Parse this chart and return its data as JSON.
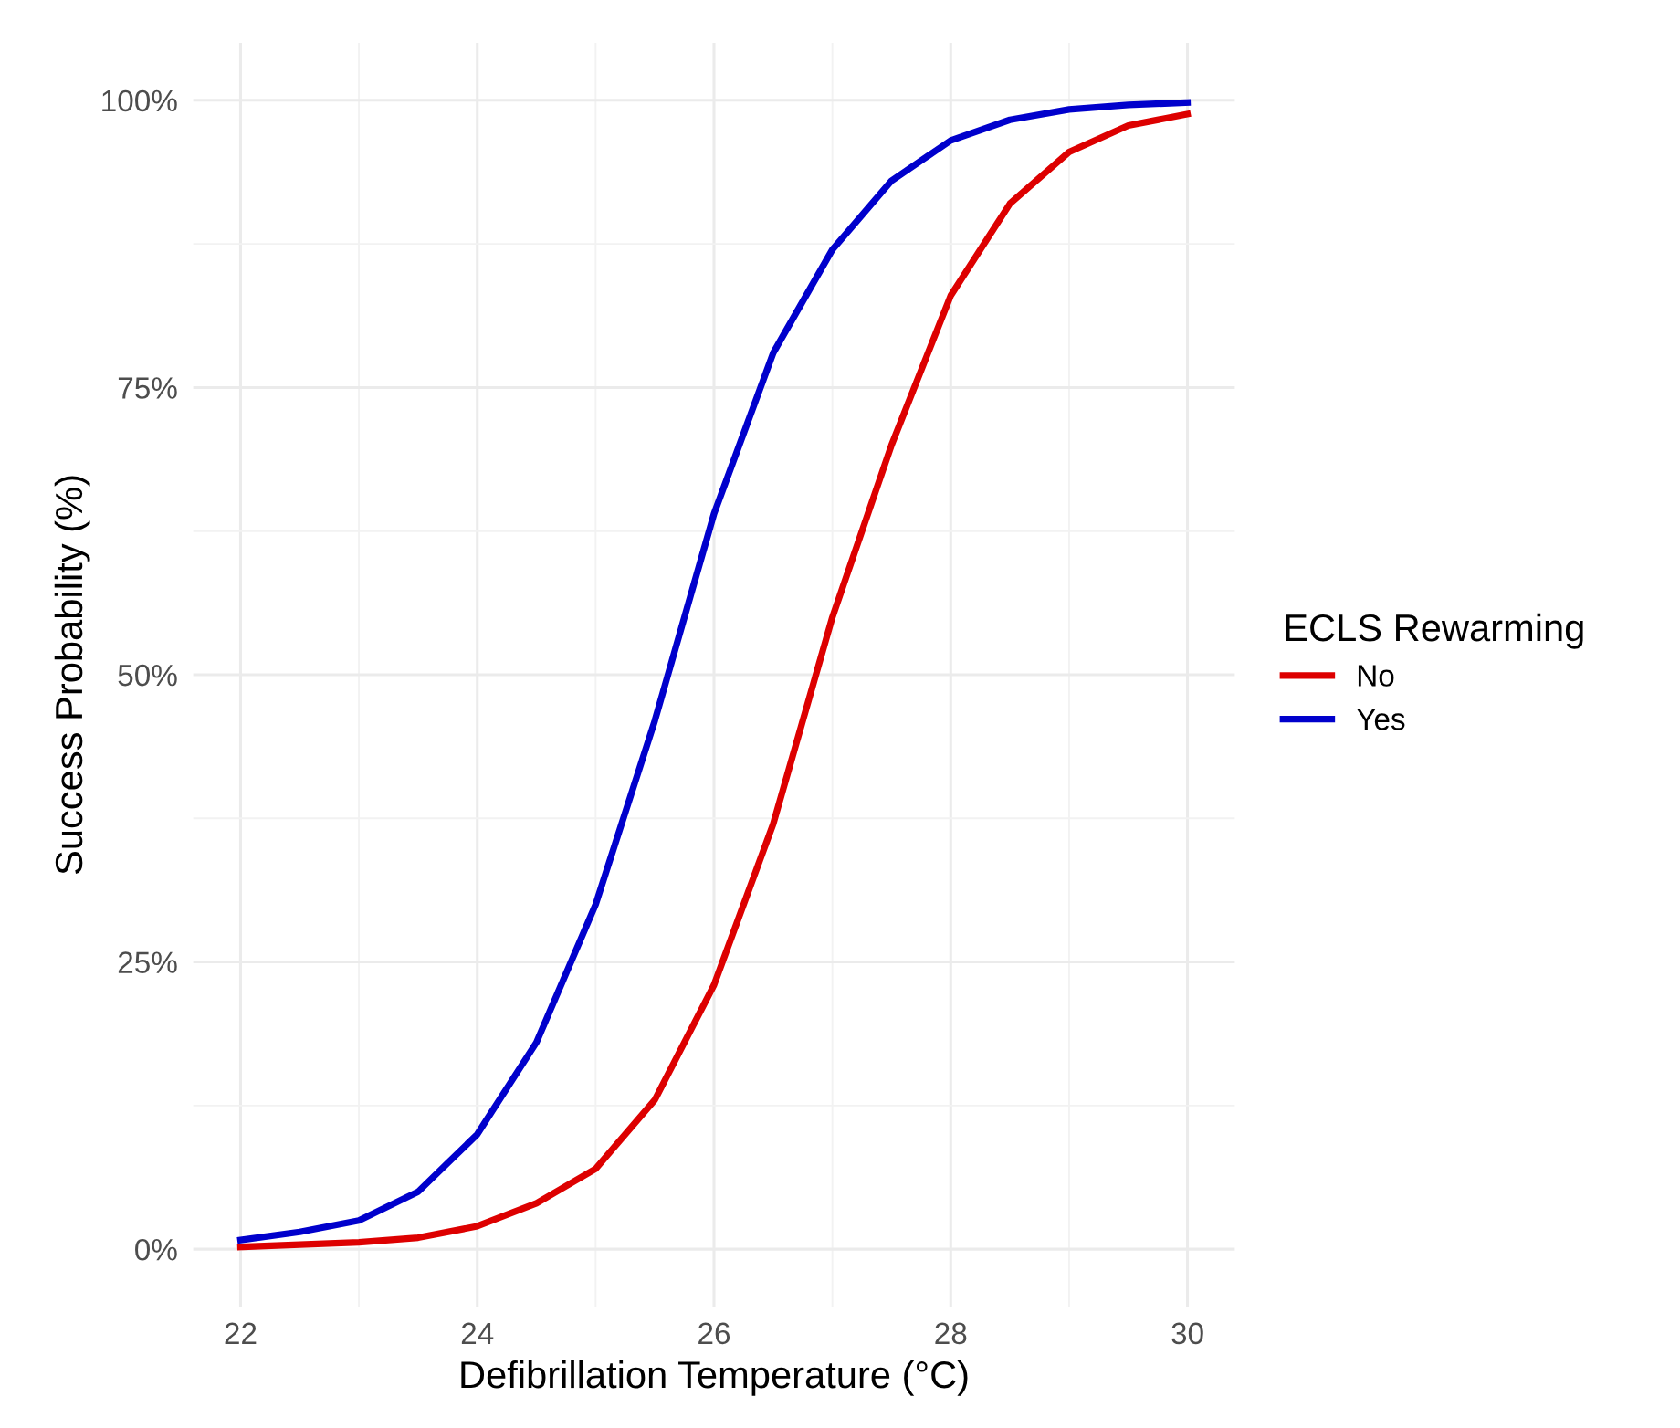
{
  "chart_data": {
    "type": "line",
    "xlabel": "Defibrillation Temperature (°C)",
    "ylabel": "Success Probability (%)",
    "legend_title": "ECLS Rewarming",
    "legend": "right",
    "grid": true,
    "marker": "none",
    "line_style": "solid",
    "xlim": [
      21.6,
      30.4
    ],
    "xticks": [
      22,
      24,
      26,
      28,
      30
    ],
    "ylim": [
      -5,
      105
    ],
    "yticks": [
      {
        "value": 0,
        "label": "0%"
      },
      {
        "value": 25,
        "label": "25%"
      },
      {
        "value": 50,
        "label": "50%"
      },
      {
        "value": 75,
        "label": "75%"
      },
      {
        "value": 100,
        "label": "100%"
      }
    ],
    "x": [
      22,
      22.5,
      23,
      23.5,
      24,
      24.5,
      25,
      25.5,
      26,
      26.5,
      27,
      27.5,
      28,
      28.5,
      29,
      29.5,
      30
    ],
    "series": [
      {
        "name": "No",
        "color": "#dd0000",
        "values": [
          0.2,
          0.4,
          0.6,
          1,
          2,
          4,
          7,
          13,
          23,
          37,
          55,
          70,
          83,
          91,
          95.5,
          97.8,
          98.8
        ]
      },
      {
        "name": "Yes",
        "color": "#0000cc",
        "values": [
          0.8,
          1.5,
          2.5,
          5,
          10,
          18,
          30,
          46,
          64,
          78,
          87,
          93,
          96.5,
          98.3,
          99.2,
          99.6,
          99.8
        ]
      }
    ]
  }
}
